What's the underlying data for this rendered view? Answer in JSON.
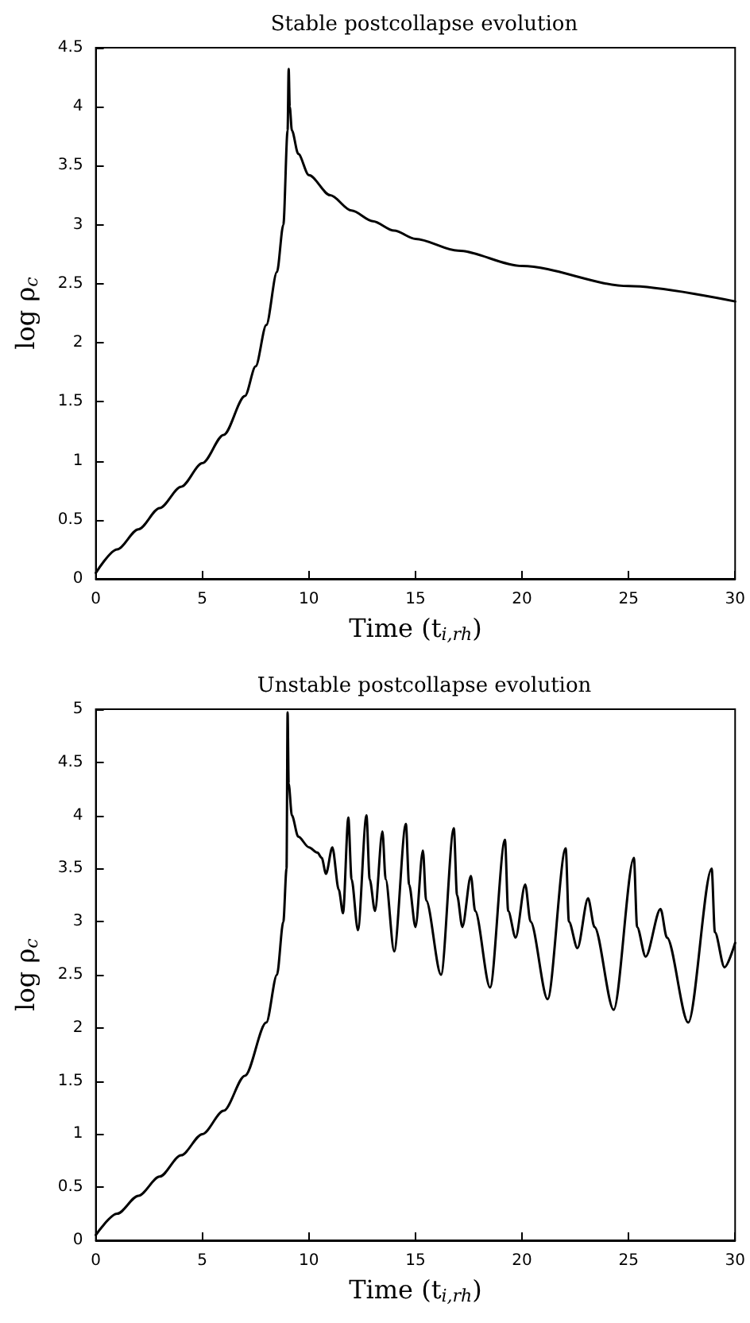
{
  "chart_data": [
    {
      "type": "line",
      "title": "Stable postcollapse evolution",
      "xlabel": "Time (t$_{i,rh}$)",
      "ylabel": "log ρ$_{c}$",
      "color": "#000000",
      "marker": "none",
      "line_style": "solid",
      "grid": false,
      "x": [
        0,
        1,
        2,
        3,
        4,
        5,
        6,
        7,
        7.5,
        8,
        8.5,
        8.8,
        9.0,
        9.05,
        9.1,
        9.2,
        9.5,
        10,
        11,
        12,
        13,
        14,
        15,
        17,
        20,
        25,
        30
      ],
      "values": [
        0.05,
        0.25,
        0.42,
        0.6,
        0.78,
        0.98,
        1.22,
        1.55,
        1.8,
        2.15,
        2.6,
        3.0,
        3.8,
        4.32,
        4.0,
        3.8,
        3.6,
        3.42,
        3.25,
        3.12,
        3.03,
        2.95,
        2.88,
        2.78,
        2.65,
        2.48,
        2.35
      ],
      "xlim": [
        0,
        30
      ],
      "xticks": [
        0,
        5,
        10,
        15,
        20,
        25,
        30
      ],
      "ylim": [
        0,
        4.5
      ],
      "yticks": [
        0,
        0.5,
        1,
        1.5,
        2,
        2.5,
        3,
        3.5,
        4,
        4.5
      ]
    },
    {
      "type": "line",
      "title": "Unstable postcollapse evolution",
      "xlabel": "Time (t$_{i,rh}$)",
      "ylabel": "log ρ$_{c}$",
      "color": "#000000",
      "marker": "none",
      "line_style": "solid",
      "grid": false,
      "x": [
        0,
        1,
        2,
        3,
        4,
        5,
        6,
        7,
        8,
        8.5,
        8.8,
        8.95,
        9.0,
        9.05,
        9.2,
        9.5,
        10,
        10.4,
        10.6,
        10.8,
        11.1,
        11.4,
        11.6,
        11.85,
        12.0,
        12.3,
        12.7,
        12.85,
        13.1,
        13.45,
        13.6,
        14.0,
        14.55,
        14.7,
        15.0,
        15.35,
        15.5,
        16.2,
        16.8,
        16.95,
        17.2,
        17.6,
        17.8,
        18.5,
        19.2,
        19.35,
        19.7,
        20.15,
        20.4,
        21.2,
        22.05,
        22.2,
        22.6,
        23.1,
        23.4,
        24.3,
        25.25,
        25.4,
        25.8,
        26.5,
        26.8,
        27.8,
        28.9,
        29.05,
        29.5,
        30
      ],
      "values": [
        0.05,
        0.25,
        0.42,
        0.6,
        0.8,
        1.0,
        1.22,
        1.55,
        2.05,
        2.5,
        3.0,
        3.5,
        4.97,
        4.3,
        4.0,
        3.8,
        3.7,
        3.65,
        3.6,
        3.45,
        3.7,
        3.3,
        3.08,
        3.98,
        3.4,
        2.92,
        4.0,
        3.4,
        3.1,
        3.85,
        3.4,
        2.72,
        3.92,
        3.35,
        2.95,
        3.67,
        3.2,
        2.5,
        3.88,
        3.25,
        2.95,
        3.43,
        3.1,
        2.38,
        3.77,
        3.1,
        2.85,
        3.35,
        3.0,
        2.27,
        3.69,
        3.0,
        2.75,
        3.22,
        2.95,
        2.17,
        3.6,
        2.95,
        2.67,
        3.12,
        2.85,
        2.05,
        3.5,
        2.9,
        2.57,
        2.8
      ],
      "xlim": [
        0,
        30
      ],
      "xticks": [
        0,
        5,
        10,
        15,
        20,
        25,
        30
      ],
      "ylim": [
        0,
        5
      ],
      "yticks": [
        0,
        0.5,
        1,
        1.5,
        2,
        2.5,
        3,
        3.5,
        4,
        4.5,
        5
      ]
    }
  ]
}
